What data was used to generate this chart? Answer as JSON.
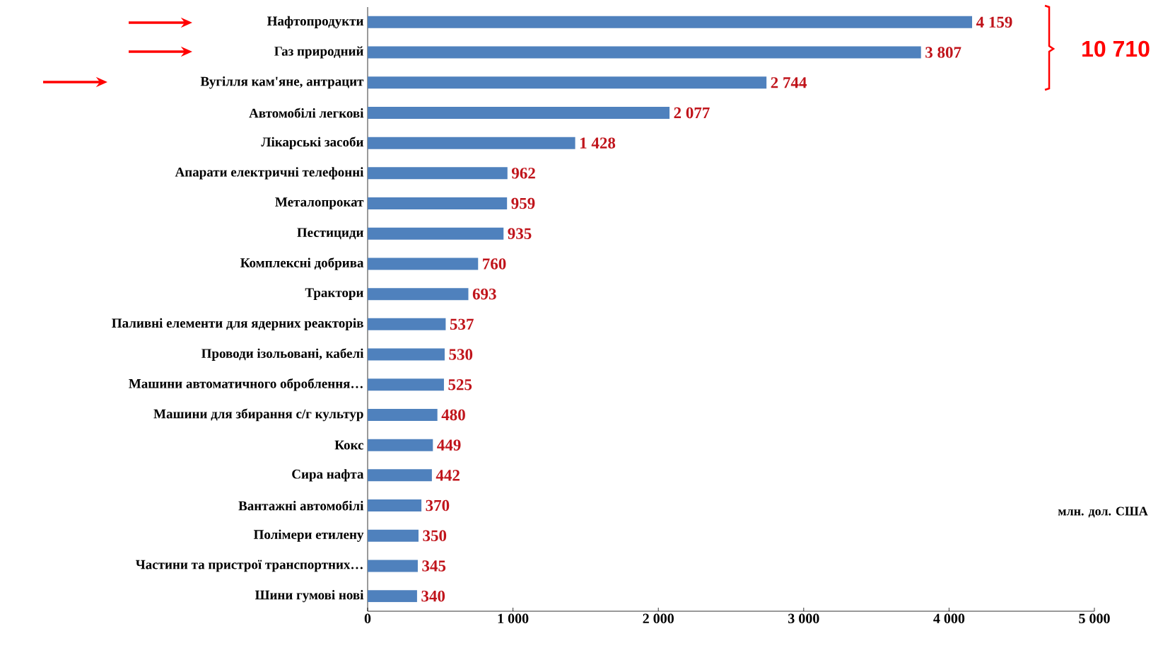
{
  "chart_data": {
    "type": "bar",
    "orientation": "horizontal",
    "categories": [
      "Нафтопродукти",
      "Газ природний",
      "Вугілля кам'яне, антрацит",
      "Автомобілі легкові",
      "Лікарські засоби",
      "Апарати електричні телефонні",
      "Металопрокат",
      "Пестициди",
      "Комплексні добрива",
      "Трактори",
      "Паливні елементи для ядерних реакторів",
      "Проводи ізольовані, кабелі",
      "Машини автоматичного оброблення…",
      "Машини для збирання с/г культур",
      "Кокс",
      "Сира нафта",
      "Вантажні автомобілі",
      "Полімери етилену",
      "Частини та пристрої транспортних…",
      "Шини гумові нові"
    ],
    "values": [
      4159,
      3807,
      2744,
      2077,
      1428,
      962,
      959,
      935,
      760,
      693,
      537,
      530,
      525,
      480,
      449,
      442,
      370,
      350,
      345,
      340
    ],
    "value_labels": [
      "4 159",
      "3 807",
      "2 744",
      "2 077",
      "1 428",
      "962",
      "959",
      "935",
      "760",
      "693",
      "537",
      "530",
      "525",
      "480",
      "449",
      "442",
      "370",
      "350",
      "345",
      "340"
    ],
    "color": "#4f81bd",
    "xlim": [
      0,
      5000
    ],
    "xticks": [
      0,
      {
        "value": 1000,
        "label": "1 000"
      },
      {
        "value": 2000,
        "label": "2 000"
      },
      {
        "value": 3000,
        "label": "3 000"
      },
      {
        "value": 4000,
        "label": "4 000"
      },
      {
        "value": 5000,
        "label": "5 000"
      }
    ],
    "annotations": [
      "10 710",
      "млн. дол. США"
    ],
    "grid": false
  }
}
